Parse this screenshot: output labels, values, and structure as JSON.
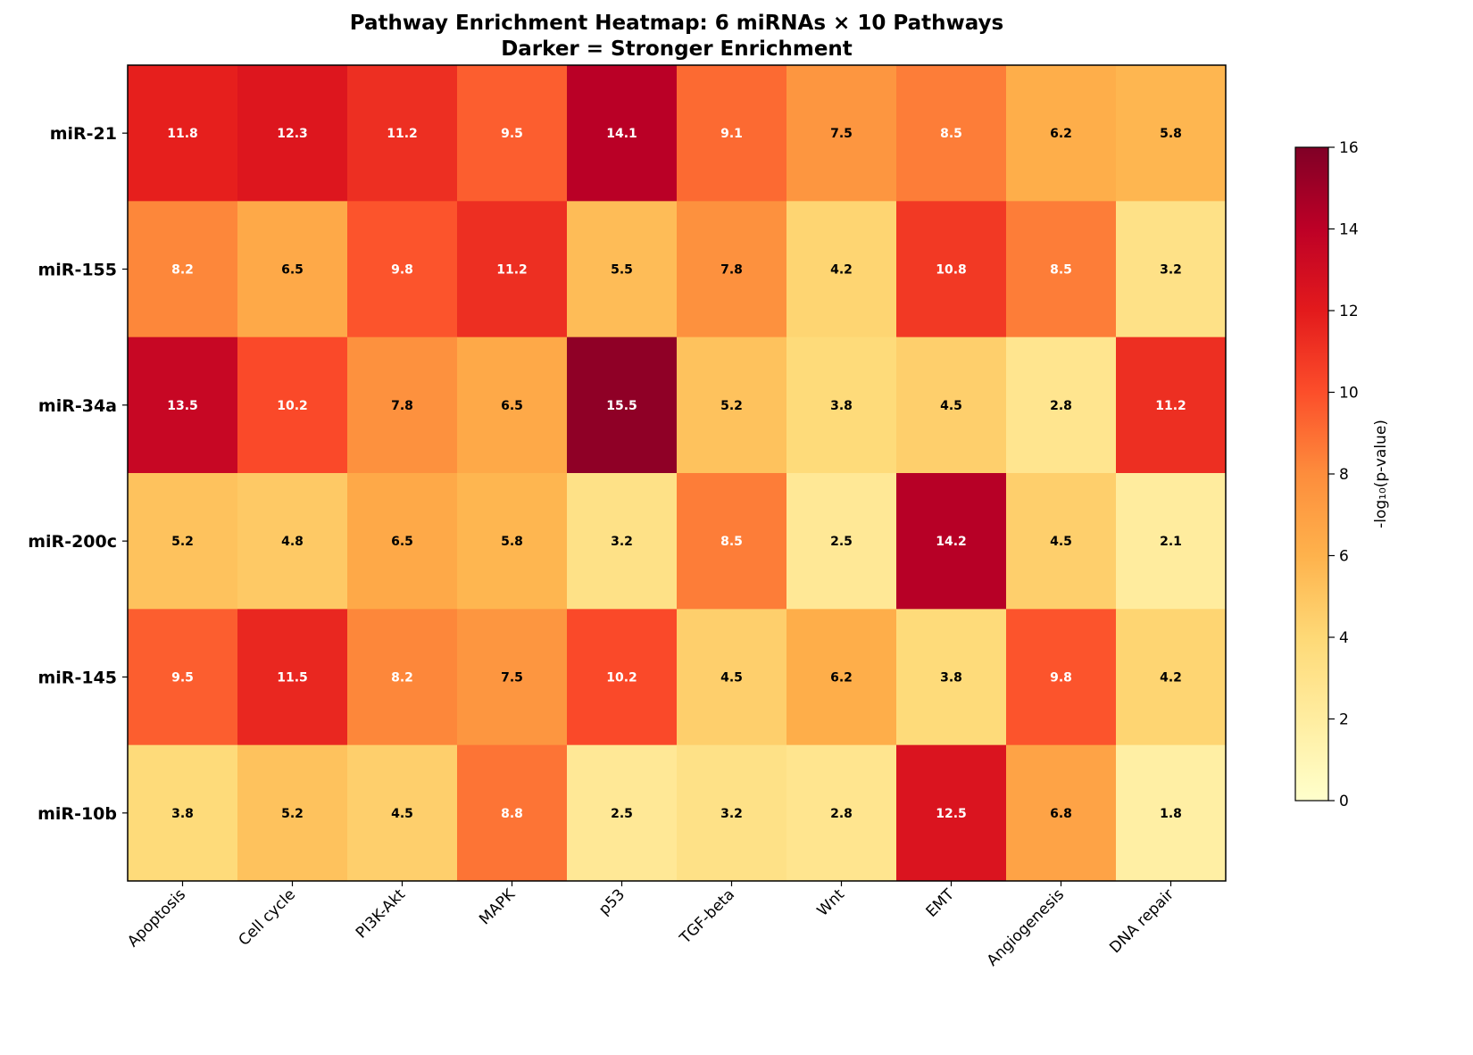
{
  "chart_data": {
    "type": "heatmap",
    "title": "Pathway Enrichment Heatmap: 6 miRNAs × 10 Pathways",
    "subtitle": "Darker = Stronger Enrichment",
    "rows": [
      "miR-21",
      "miR-155",
      "miR-34a",
      "miR-200c",
      "miR-145",
      "miR-10b"
    ],
    "columns": [
      "Apoptosis",
      "Cell cycle",
      "PI3K-Akt",
      "MAPK",
      "p53",
      "TGF-beta",
      "Wnt",
      "EMT",
      "Angiogenesis",
      "DNA repair"
    ],
    "values": [
      [
        11.8,
        12.3,
        11.2,
        9.5,
        14.1,
        9.1,
        7.5,
        8.5,
        6.2,
        5.8
      ],
      [
        8.2,
        6.5,
        9.8,
        11.2,
        5.5,
        7.8,
        4.2,
        10.8,
        8.5,
        3.2
      ],
      [
        13.5,
        10.2,
        7.8,
        6.5,
        15.5,
        5.2,
        3.8,
        4.5,
        2.8,
        11.2
      ],
      [
        5.2,
        4.8,
        6.5,
        5.8,
        3.2,
        8.5,
        2.5,
        14.2,
        4.5,
        2.1
      ],
      [
        9.5,
        11.5,
        8.2,
        7.5,
        10.2,
        4.5,
        6.2,
        3.8,
        9.8,
        4.2
      ],
      [
        3.8,
        5.2,
        4.5,
        8.8,
        2.5,
        3.2,
        2.8,
        12.5,
        6.8,
        1.8
      ]
    ],
    "colormap": "YlOrRd",
    "vmin": 0,
    "vmax": 16,
    "colorbar": {
      "label": "-log₁₀(p-value)",
      "ticks": [
        "0",
        "2",
        "4",
        "6",
        "8",
        "10",
        "12",
        "14",
        "16"
      ]
    },
    "annotation_colors": {
      "light_text": "#ffffff",
      "dark_text": "#000000"
    },
    "annotation_threshold": 8
  }
}
